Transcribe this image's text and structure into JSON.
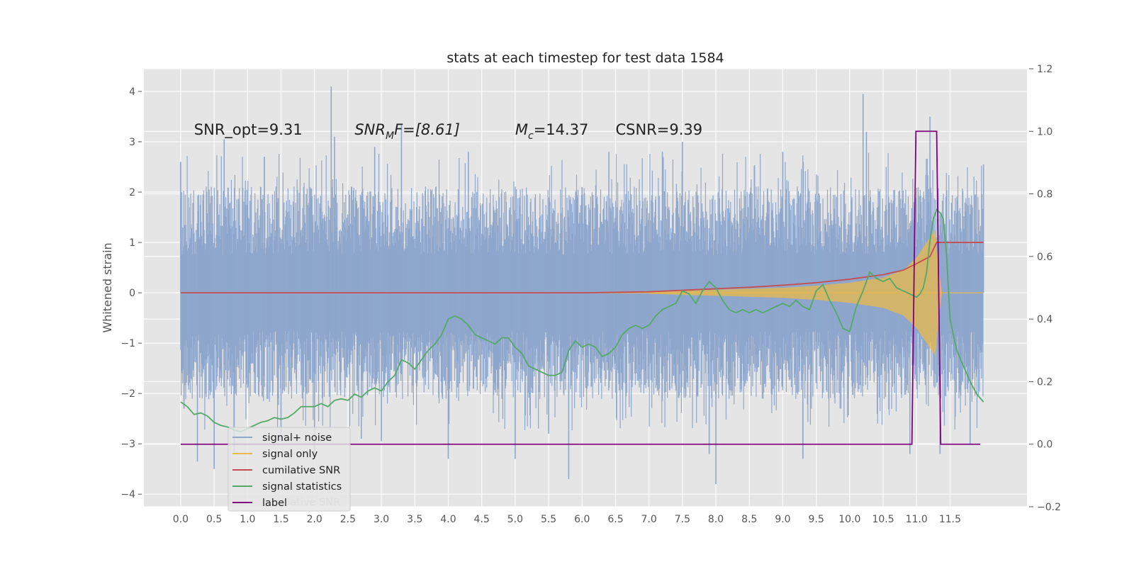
{
  "chart_data": {
    "type": "line",
    "title": "stats at each timestep for test data 1584",
    "ylabel": "Whitened strain",
    "xlabel": "",
    "xlim": [
      -0.55,
      12.65
    ],
    "ylim": [
      -4.25,
      4.45
    ],
    "y2lim": [
      -0.2,
      1.2
    ],
    "grid": true,
    "legend_position": "lower-left",
    "x_ticks": [
      "0.0",
      "0.5",
      "1.0",
      "1.5",
      "2.0",
      "2.5",
      "3.0",
      "3.5",
      "4.0",
      "4.5",
      "5.0",
      "5.5",
      "6.0",
      "6.5",
      "7.0",
      "7.5",
      "8.0",
      "8.5",
      "9.0",
      "9.5",
      "10.0",
      "10.5",
      "11.0",
      "11.5"
    ],
    "y_ticks": [
      "−4",
      "−3",
      "−2",
      "−1",
      "0",
      "1",
      "2",
      "3",
      "4"
    ],
    "y2_ticks": [
      "−0.2",
      "0.0",
      "0.2",
      "0.4",
      "0.6",
      "0.8",
      "1.0",
      "1.2"
    ],
    "annotations": [
      {
        "text": "SNR_opt=9.31",
        "x": 0.2,
        "y": 3.25
      },
      {
        "text": "SNR_MF=[8.61]",
        "display_main": "SNR",
        "display_sub": "M",
        "display_tail": "F=[8.61]",
        "x": 2.6,
        "y": 3.25
      },
      {
        "text": "M_c=14.37",
        "display_main": "M",
        "display_sub": "c",
        "display_tail": "=14.37",
        "x": 5.0,
        "y": 3.25
      },
      {
        "text": "CSNR=9.39",
        "x": 6.5,
        "y": 3.25
      }
    ],
    "legend": [
      "signal+ noise",
      "signal only",
      "cumilative SNR",
      "signal statistics",
      "label"
    ],
    "legend_overlapped_text": "cumilative SNR",
    "series": [
      {
        "name": "signal+ noise",
        "color": "#8fa7cc",
        "axis": "left",
        "envelope": {
          "x": [
            0,
            12.0
          ],
          "typical_max": 2.2,
          "typical_min": -2.2,
          "peak_max": 4.1,
          "peak_min": -3.85
        },
        "spikes": [
          {
            "x": 0.0,
            "y": 2.6
          },
          {
            "x": 0.05,
            "y": -2.3
          },
          {
            "x": 0.25,
            "y": -3.35
          },
          {
            "x": 0.5,
            "y": -3.5
          },
          {
            "x": 0.65,
            "y": 3.05
          },
          {
            "x": 0.8,
            "y": -3.2
          },
          {
            "x": 1.25,
            "y": 2.7
          },
          {
            "x": 1.5,
            "y": -2.95
          },
          {
            "x": 2.0,
            "y": -3.25
          },
          {
            "x": 2.25,
            "y": 4.1
          },
          {
            "x": 2.3,
            "y": 3.1
          },
          {
            "x": 2.7,
            "y": -2.9
          },
          {
            "x": 2.9,
            "y": 2.9
          },
          {
            "x": 3.0,
            "y": -2.95
          },
          {
            "x": 3.3,
            "y": 3.35
          },
          {
            "x": 4.0,
            "y": -3.3
          },
          {
            "x": 4.3,
            "y": 2.8
          },
          {
            "x": 5.0,
            "y": -3.3
          },
          {
            "x": 5.5,
            "y": -2.8
          },
          {
            "x": 5.8,
            "y": -3.7
          },
          {
            "x": 6.0,
            "y": 2.1
          },
          {
            "x": 6.4,
            "y": 2.8
          },
          {
            "x": 7.2,
            "y": 2.8
          },
          {
            "x": 7.5,
            "y": 3.0
          },
          {
            "x": 7.9,
            "y": -3.2
          },
          {
            "x": 8.0,
            "y": -3.8
          },
          {
            "x": 9.0,
            "y": 2.8
          },
          {
            "x": 9.3,
            "y": -3.3
          },
          {
            "x": 10.2,
            "y": 3.95
          },
          {
            "x": 10.25,
            "y": 3.2
          },
          {
            "x": 10.9,
            "y": -3.2
          },
          {
            "x": 11.2,
            "y": 3.5
          },
          {
            "x": 11.35,
            "y": -3.2
          },
          {
            "x": 11.8,
            "y": -3.0
          },
          {
            "x": 12.0,
            "y": 2.55
          }
        ]
      },
      {
        "name": "signal only",
        "color": "#e8b84a",
        "axis": "left",
        "chirp_envelope": [
          [
            7.0,
            0.02
          ],
          [
            7.5,
            0.04
          ],
          [
            8.0,
            0.06
          ],
          [
            8.5,
            0.08
          ],
          [
            9.0,
            0.1
          ],
          [
            9.5,
            0.14
          ],
          [
            10.0,
            0.2
          ],
          [
            10.5,
            0.3
          ],
          [
            10.8,
            0.45
          ],
          [
            11.0,
            0.7
          ],
          [
            11.1,
            0.9
          ],
          [
            11.2,
            1.1
          ],
          [
            11.28,
            1.25
          ],
          [
            11.33,
            0.5
          ],
          [
            11.38,
            0.0
          ]
        ]
      },
      {
        "name": "cumilative SNR",
        "color": "#c44e52",
        "axis": "left",
        "x": [
          0.0,
          6.0,
          7.0,
          7.5,
          8.0,
          8.5,
          9.0,
          9.5,
          10.0,
          10.5,
          10.8,
          11.0,
          11.2,
          11.3,
          11.4,
          12.0
        ],
        "y": [
          0.0,
          0.0,
          0.02,
          0.05,
          0.08,
          0.11,
          0.15,
          0.2,
          0.27,
          0.36,
          0.45,
          0.58,
          0.72,
          1.0,
          1.0,
          1.0
        ]
      },
      {
        "name": "signal statistics",
        "color": "#55a868",
        "axis": "right",
        "x": [
          0.0,
          0.1,
          0.2,
          0.3,
          0.4,
          0.5,
          0.6,
          0.7,
          0.8,
          0.9,
          1.0,
          1.1,
          1.2,
          1.3,
          1.4,
          1.5,
          1.6,
          1.7,
          1.8,
          1.9,
          2.0,
          2.1,
          2.2,
          2.3,
          2.4,
          2.5,
          2.6,
          2.7,
          2.8,
          2.9,
          3.0,
          3.1,
          3.2,
          3.3,
          3.4,
          3.5,
          3.6,
          3.7,
          3.8,
          3.9,
          4.0,
          4.1,
          4.2,
          4.3,
          4.4,
          4.5,
          4.6,
          4.7,
          4.8,
          4.9,
          5.0,
          5.1,
          5.2,
          5.3,
          5.4,
          5.5,
          5.6,
          5.7,
          5.8,
          5.9,
          6.0,
          6.1,
          6.2,
          6.3,
          6.4,
          6.5,
          6.6,
          6.7,
          6.8,
          6.9,
          7.0,
          7.1,
          7.2,
          7.3,
          7.4,
          7.5,
          7.6,
          7.7,
          7.8,
          7.9,
          8.0,
          8.1,
          8.2,
          8.3,
          8.4,
          8.5,
          8.6,
          8.7,
          8.8,
          8.9,
          9.0,
          9.1,
          9.2,
          9.3,
          9.4,
          9.5,
          9.6,
          9.7,
          9.8,
          9.9,
          10.0,
          10.1,
          10.2,
          10.3,
          10.4,
          10.5,
          10.6,
          10.7,
          10.8,
          10.9,
          11.0,
          11.05,
          11.1,
          11.15,
          11.2,
          11.25,
          11.3,
          11.35,
          11.4,
          11.45,
          11.5,
          11.6,
          11.7,
          11.8,
          11.9,
          12.0
        ],
        "y": [
          0.135,
          0.12,
          0.095,
          0.1,
          0.09,
          0.07,
          0.06,
          0.055,
          0.045,
          0.04,
          0.05,
          0.06,
          0.07,
          0.075,
          0.085,
          0.08,
          0.085,
          0.1,
          0.12,
          0.12,
          0.12,
          0.13,
          0.12,
          0.14,
          0.145,
          0.14,
          0.16,
          0.15,
          0.17,
          0.18,
          0.17,
          0.2,
          0.22,
          0.27,
          0.26,
          0.24,
          0.27,
          0.3,
          0.32,
          0.35,
          0.4,
          0.41,
          0.4,
          0.38,
          0.35,
          0.34,
          0.33,
          0.32,
          0.34,
          0.34,
          0.31,
          0.29,
          0.25,
          0.24,
          0.23,
          0.22,
          0.22,
          0.23,
          0.3,
          0.33,
          0.31,
          0.32,
          0.31,
          0.28,
          0.29,
          0.31,
          0.35,
          0.37,
          0.38,
          0.37,
          0.38,
          0.41,
          0.43,
          0.44,
          0.45,
          0.49,
          0.48,
          0.45,
          0.49,
          0.52,
          0.5,
          0.46,
          0.43,
          0.42,
          0.43,
          0.42,
          0.43,
          0.42,
          0.43,
          0.44,
          0.45,
          0.44,
          0.46,
          0.44,
          0.43,
          0.49,
          0.51,
          0.46,
          0.42,
          0.37,
          0.36,
          0.44,
          0.49,
          0.55,
          0.53,
          0.52,
          0.53,
          0.5,
          0.49,
          0.48,
          0.47,
          0.48,
          0.5,
          0.55,
          0.65,
          0.72,
          0.75,
          0.74,
          0.72,
          0.6,
          0.4,
          0.3,
          0.25,
          0.2,
          0.16,
          0.135
        ]
      },
      {
        "name": "label",
        "color": "#800080",
        "axis": "right",
        "x": [
          0.0,
          10.93,
          10.99,
          11.3,
          11.36,
          11.95
        ],
        "y": [
          0.0,
          0.0,
          1.0,
          1.0,
          0.0,
          0.0
        ]
      }
    ]
  },
  "colors": {
    "plot_background": "#e5e5e5",
    "grid": "#ffffff",
    "signal_noise": "#8fa7cc",
    "signal_only": "#e8b84a",
    "cumulative_snr": "#c44e52",
    "signal_statistics": "#55a868",
    "label": "#800080"
  }
}
